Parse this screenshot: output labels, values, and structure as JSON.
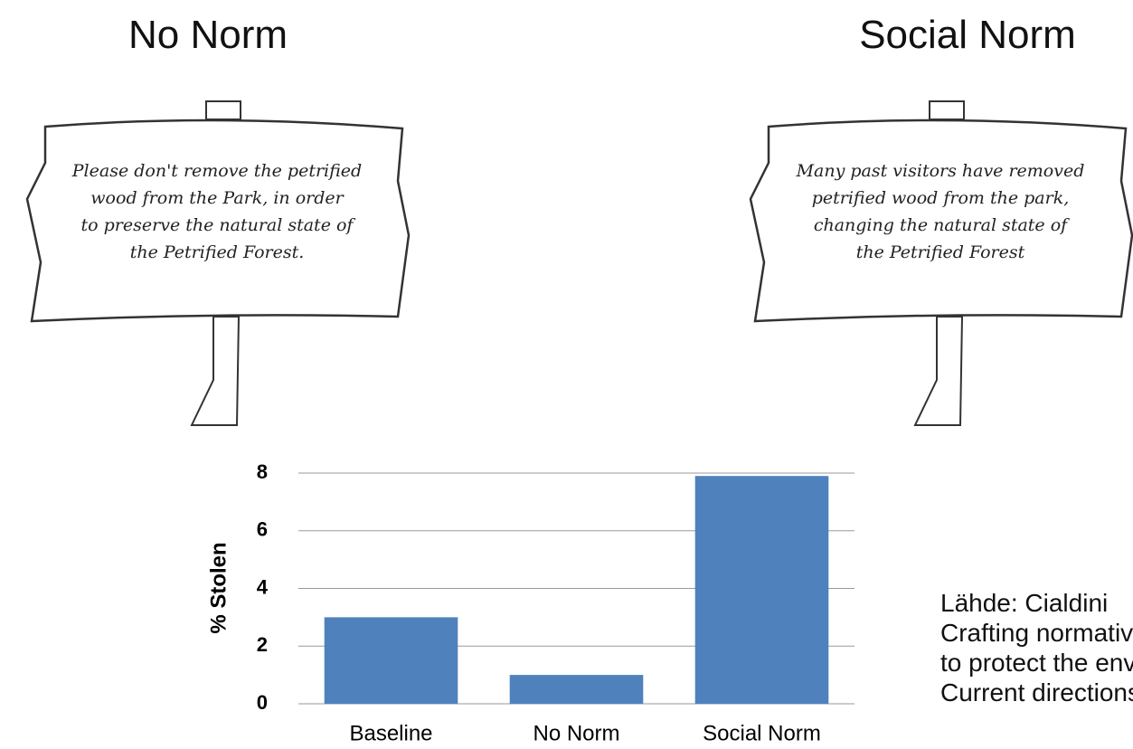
{
  "signs": [
    {
      "heading": "No Norm",
      "lines": [
        "Please don't remove the petrified",
        "wood from the Park, in order",
        "to preserve the natural state of",
        "the Petrified Forest."
      ]
    },
    {
      "heading": "Social Norm",
      "lines": [
        "Many past visitors have removed",
        "petrified wood from the park,",
        "changing the natural state of",
        "the Petrified Forest"
      ]
    }
  ],
  "chart_data": {
    "type": "bar",
    "y_label": "% Stolen",
    "categories": [
      "Baseline",
      "No Norm",
      "Social Norm"
    ],
    "values": [
      3.0,
      1.0,
      7.9
    ],
    "color": "#4f81bd",
    "ylim": [
      0,
      8
    ],
    "yticks": [
      0,
      2,
      4,
      6,
      8
    ],
    "grid": true
  },
  "source": [
    "Lähde: Cialdini",
    "Crafting normative messages",
    "to protect the environment.",
    "Current directions"
  ]
}
